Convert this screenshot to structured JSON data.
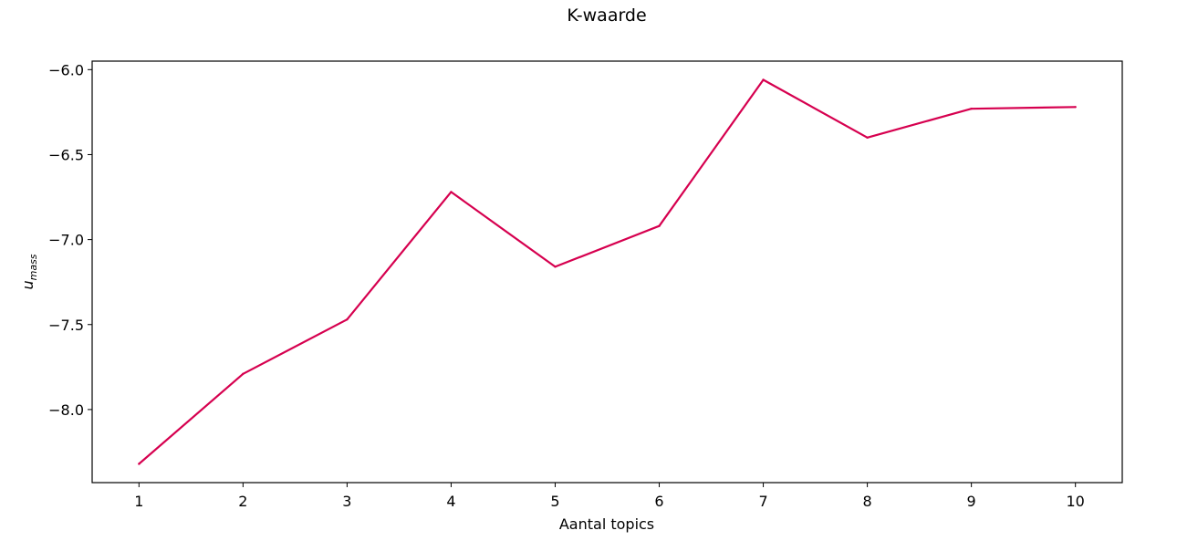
{
  "chart_data": {
    "type": "line",
    "title": "K-waarde",
    "xlabel": "Aantal topics",
    "ylabel": "u",
    "ylabel_sub": "mass",
    "x": [
      1,
      2,
      3,
      4,
      5,
      6,
      7,
      8,
      9,
      10
    ],
    "series": [
      {
        "values": [
          -8.32,
          -7.79,
          -7.47,
          -6.72,
          -7.16,
          -6.92,
          -6.06,
          -6.4,
          -6.23,
          -6.22
        ],
        "color": "#d6004f"
      }
    ],
    "xticks": [
      "1",
      "2",
      "3",
      "4",
      "5",
      "6",
      "7",
      "8",
      "9",
      "10"
    ],
    "yticks": [
      {
        "value": -6.0,
        "label": "−6.0"
      },
      {
        "value": -6.5,
        "label": "−6.5"
      },
      {
        "value": -7.0,
        "label": "−7.0"
      },
      {
        "value": -7.5,
        "label": "−7.5"
      },
      {
        "value": -8.0,
        "label": "−8.0"
      }
    ],
    "xlim": [
      0.55,
      10.45
    ],
    "ylim": [
      -8.43,
      -5.95
    ],
    "grid": false,
    "legend": "none"
  }
}
